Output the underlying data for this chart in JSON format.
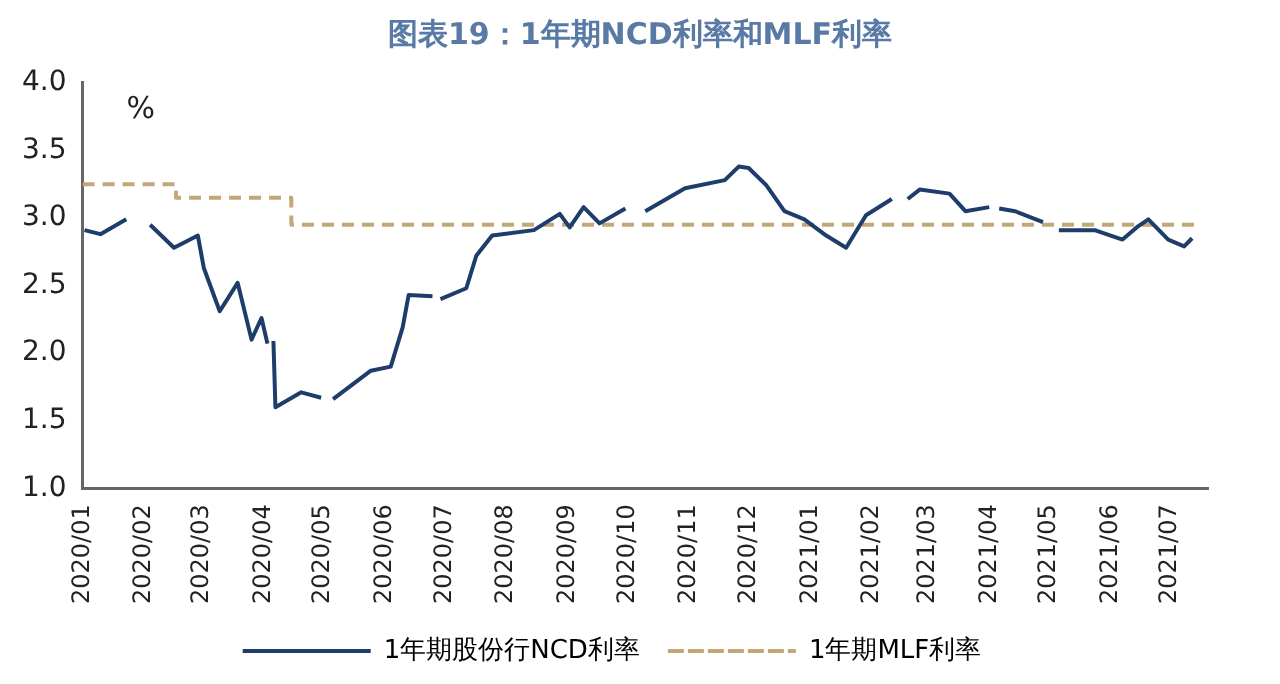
{
  "chart_data": {
    "type": "line",
    "title": "图表19：1年期NCD利率和MLF利率",
    "ylabel": "%",
    "xlim": [
      "2020-01-01",
      "2021-07-20"
    ],
    "ylim": [
      1.0,
      4.0
    ],
    "yticks": [
      {
        "value": 1.0,
        "label": "1.0"
      },
      {
        "value": 1.5,
        "label": "1.5"
      },
      {
        "value": 2.0,
        "label": "2.0"
      },
      {
        "value": 2.5,
        "label": "2.5"
      },
      {
        "value": 3.0,
        "label": "3.0"
      },
      {
        "value": 3.5,
        "label": "3.5"
      },
      {
        "value": 4.0,
        "label": "4.0"
      }
    ],
    "xticks": [
      {
        "value": "2020-01-01",
        "label": "2020/01"
      },
      {
        "value": "2020-02-01",
        "label": "2020/02"
      },
      {
        "value": "2020-03-01",
        "label": "2020/03"
      },
      {
        "value": "2020-04-01",
        "label": "2020/04"
      },
      {
        "value": "2020-05-01",
        "label": "2020/05"
      },
      {
        "value": "2020-06-01",
        "label": "2020/06"
      },
      {
        "value": "2020-07-01",
        "label": "2020/07"
      },
      {
        "value": "2020-08-01",
        "label": "2020/08"
      },
      {
        "value": "2020-09-01",
        "label": "2020/09"
      },
      {
        "value": "2020-10-01",
        "label": "2020/10"
      },
      {
        "value": "2020-11-01",
        "label": "2020/11"
      },
      {
        "value": "2020-12-01",
        "label": "2020/12"
      },
      {
        "value": "2021-01-01",
        "label": "2021/01"
      },
      {
        "value": "2021-02-01",
        "label": "2021/02"
      },
      {
        "value": "2021-03-01",
        "label": "2021/03"
      },
      {
        "value": "2021-04-01",
        "label": "2021/04"
      },
      {
        "value": "2021-05-01",
        "label": "2021/05"
      },
      {
        "value": "2021-06-01",
        "label": "2021/06"
      },
      {
        "value": "2021-07-01",
        "label": "2021/07"
      }
    ],
    "grid": false,
    "legend": "bottom",
    "marker": "none",
    "series": [
      {
        "name": "1年期股份行NCD利率",
        "color": "#1f3d6b",
        "line_style": "solid",
        "x": [
          "2020-01-02",
          "2020-01-10",
          "2020-01-23",
          "2020-01-28",
          "2020-02-04",
          "2020-02-16",
          "2020-02-28",
          "2020-03-02",
          "2020-03-10",
          "2020-03-19",
          "2020-03-26",
          "2020-03-31",
          "2020-04-03",
          "2020-04-05",
          "2020-04-06",
          "2020-04-07",
          "2020-04-20",
          "2020-04-30",
          "2020-05-03",
          "2020-05-06",
          "2020-05-25",
          "2020-06-04",
          "2020-06-10",
          "2020-06-13",
          "2020-06-25",
          "2020-06-27",
          "2020-06-29",
          "2020-07-12",
          "2020-07-17",
          "2020-07-25",
          "2020-08-15",
          "2020-08-28",
          "2020-09-02",
          "2020-09-09",
          "2020-09-17",
          "2020-09-30",
          "2020-10-05",
          "2020-10-10",
          "2020-10-30",
          "2020-11-19",
          "2020-11-26",
          "2020-12-01",
          "2020-12-10",
          "2020-12-19",
          "2020-12-29",
          "2021-01-09",
          "2021-01-19",
          "2021-01-29",
          "2021-02-11",
          "2021-02-15",
          "2021-02-19",
          "2021-02-25",
          "2021-03-12",
          "2021-03-20",
          "2021-04-01",
          "2021-04-02",
          "2021-04-06",
          "2021-04-14",
          "2021-04-28",
          "2021-05-02",
          "2021-05-06",
          "2021-05-24",
          "2021-06-07",
          "2021-06-15",
          "2021-06-20",
          "2021-06-30",
          "2021-07-08",
          "2021-07-12"
        ],
        "values": [
          2.91,
          2.88,
          2.99,
          null,
          2.95,
          2.78,
          2.87,
          2.63,
          2.31,
          2.52,
          2.1,
          2.26,
          2.07,
          null,
          2.09,
          1.6,
          1.71,
          1.67,
          null,
          1.66,
          1.87,
          1.9,
          2.19,
          2.43,
          2.42,
          null,
          2.4,
          2.48,
          2.72,
          2.87,
          2.91,
          3.03,
          2.93,
          3.08,
          2.96,
          3.07,
          null,
          3.05,
          3.22,
          3.28,
          3.38,
          3.37,
          3.24,
          3.05,
          2.99,
          2.87,
          2.78,
          3.02,
          3.14,
          null,
          3.14,
          3.21,
          3.18,
          3.05,
          3.08,
          null,
          3.07,
          3.05,
          2.97,
          null,
          2.91,
          2.91,
          2.84,
          2.94,
          2.99,
          2.84,
          2.79,
          2.85
        ]
      },
      {
        "name": "1年期MLF利率",
        "type": "step",
        "color": "#c2a878",
        "line_style": "dashed",
        "x": [
          "2020-01-01",
          "2020-02-17",
          "2020-04-15",
          "2021-07-15"
        ],
        "values": [
          3.25,
          3.15,
          2.95,
          2.95
        ]
      }
    ]
  }
}
